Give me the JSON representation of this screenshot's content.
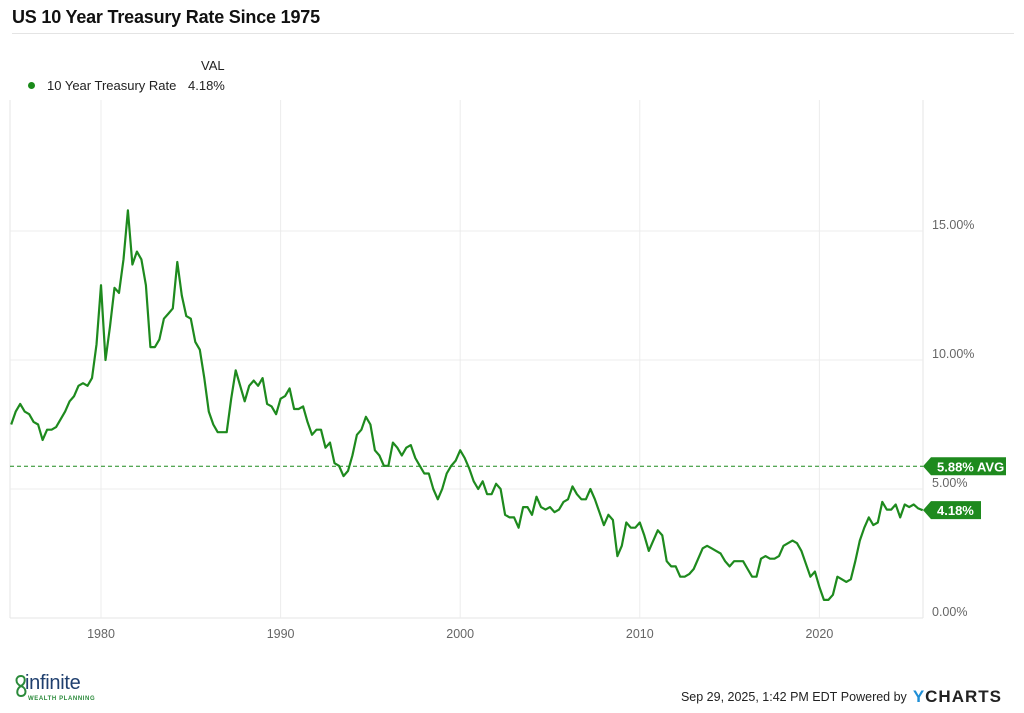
{
  "title": "US 10 Year Treasury Rate Since 1975",
  "legend": {
    "header": "VAL",
    "series_name": "10 Year Treasury Rate",
    "value": "4.18%"
  },
  "footer": {
    "timestamp": "Sep 29, 2025, 1:42 PM EDT",
    "powered_by": "Powered by",
    "brand_y": "Y",
    "brand_rest": "CHARTS"
  },
  "logo": {
    "word": "infinite",
    "sub": "WEALTH PLANNING"
  },
  "colors": {
    "line": "#1e8a1e",
    "label_bg": "#1e8a1e",
    "grid": "#ececec"
  },
  "chart_data": {
    "type": "line",
    "title": "US 10 Year Treasury Rate Since 1975",
    "xlim": [
      1975,
      2025.75
    ],
    "ylim": [
      0,
      20
    ],
    "grid": true,
    "legend_position": "top-left",
    "x_ticks": [
      {
        "value": 1980,
        "label": "1980"
      },
      {
        "value": 1990,
        "label": "1990"
      },
      {
        "value": 2000,
        "label": "2000"
      },
      {
        "value": 2010,
        "label": "2010"
      },
      {
        "value": 2020,
        "label": "2020"
      }
    ],
    "y_ticks": [
      {
        "value": 0,
        "label": "0.00%"
      },
      {
        "value": 5,
        "label": "5.00%"
      },
      {
        "value": 10,
        "label": "10.00%"
      },
      {
        "value": 15,
        "label": "15.00%"
      }
    ],
    "average": {
      "value": 5.88,
      "label": "5.88% AVG"
    },
    "last": {
      "value": 4.18,
      "label": "4.18%"
    },
    "series": [
      {
        "name": "10 Year Treasury Rate",
        "start_year": 1975,
        "step_years": 0.25,
        "values": [
          7.5,
          8.0,
          8.3,
          8.0,
          7.9,
          7.6,
          7.5,
          6.9,
          7.3,
          7.3,
          7.4,
          7.7,
          8.0,
          8.4,
          8.6,
          9.0,
          9.1,
          9.0,
          9.3,
          10.6,
          12.9,
          10.0,
          11.3,
          12.8,
          12.6,
          13.9,
          15.8,
          13.7,
          14.2,
          13.9,
          12.9,
          10.5,
          10.5,
          10.8,
          11.6,
          11.8,
          12.0,
          13.8,
          12.5,
          11.7,
          11.6,
          10.7,
          10.4,
          9.3,
          8.0,
          7.5,
          7.2,
          7.2,
          7.2,
          8.5,
          9.6,
          9.0,
          8.4,
          9.0,
          9.2,
          9.0,
          9.3,
          8.3,
          8.2,
          7.9,
          8.5,
          8.6,
          8.9,
          8.1,
          8.1,
          8.2,
          7.6,
          7.1,
          7.3,
          7.3,
          6.6,
          6.8,
          6.0,
          5.9,
          5.5,
          5.7,
          6.3,
          7.1,
          7.3,
          7.8,
          7.5,
          6.5,
          6.3,
          5.9,
          5.9,
          6.8,
          6.6,
          6.3,
          6.6,
          6.7,
          6.2,
          5.9,
          5.6,
          5.6,
          5.0,
          4.6,
          5.0,
          5.6,
          5.9,
          6.1,
          6.5,
          6.2,
          5.8,
          5.3,
          5.0,
          5.3,
          4.8,
          4.8,
          5.2,
          5.0,
          4.0,
          3.9,
          3.9,
          3.5,
          4.3,
          4.3,
          4.0,
          4.7,
          4.3,
          4.2,
          4.3,
          4.1,
          4.2,
          4.5,
          4.6,
          5.1,
          4.8,
          4.6,
          4.6,
          5.0,
          4.6,
          4.1,
          3.6,
          4.0,
          3.8,
          2.4,
          2.8,
          3.7,
          3.5,
          3.5,
          3.7,
          3.2,
          2.6,
          3.0,
          3.4,
          3.2,
          2.2,
          2.0,
          2.0,
          1.6,
          1.6,
          1.7,
          1.9,
          2.3,
          2.7,
          2.8,
          2.7,
          2.6,
          2.5,
          2.2,
          2.0,
          2.2,
          2.2,
          2.2,
          1.9,
          1.6,
          1.6,
          2.3,
          2.4,
          2.3,
          2.3,
          2.4,
          2.8,
          2.9,
          3.0,
          2.9,
          2.6,
          2.1,
          1.6,
          1.8,
          1.2,
          0.7,
          0.7,
          0.9,
          1.6,
          1.5,
          1.4,
          1.5,
          2.2,
          3.0,
          3.5,
          3.9,
          3.6,
          3.7,
          4.5,
          4.2,
          4.2,
          4.4,
          3.9,
          4.4,
          4.3,
          4.4,
          4.25,
          4.18
        ]
      }
    ]
  }
}
